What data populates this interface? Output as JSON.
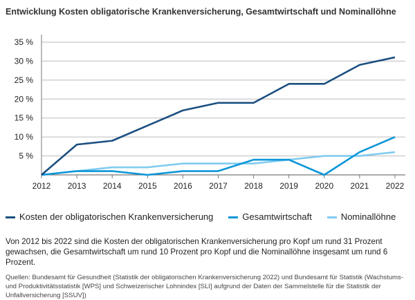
{
  "chart_data": {
    "type": "line",
    "title": "Entwicklung Kosten obligatorische Krankenversicherung, Gesamtwirtschaft und Nominallöhne",
    "x": [
      2012,
      2013,
      2014,
      2015,
      2016,
      2017,
      2018,
      2019,
      2020,
      2021,
      2022
    ],
    "yticks": [
      5,
      10,
      15,
      20,
      25,
      30,
      35
    ],
    "ytick_labels": [
      "5 %",
      "10 %",
      "15 %",
      "20 %",
      "25 %",
      "30 %",
      "35 %"
    ],
    "ylim": [
      0,
      35
    ],
    "grid": "horizontal",
    "legend": "bottom",
    "series": [
      {
        "name": "Kosten der obligatorischen Krankenversicherung",
        "color": "#1b4f80",
        "values": [
          0,
          8,
          9,
          13,
          17,
          19,
          19,
          24,
          24,
          29,
          31
        ]
      },
      {
        "name": "Gesamtwirtschaft",
        "color": "#0a95d8",
        "values": [
          0,
          1,
          1,
          0,
          1,
          1,
          4,
          4,
          0,
          6,
          10
        ]
      },
      {
        "name": "Nominallöhne",
        "color": "#80cbf0",
        "values": [
          0,
          1,
          2,
          2,
          3,
          3,
          3,
          4,
          5,
          5,
          6
        ]
      }
    ]
  },
  "note": "Von 2012 bis 2022 sind die Kosten der obligatorischen Krankenversicherung pro Kopf um rund 31 Prozent gewachsen, die Gesamtwirtschaft um rund 10 Prozent pro Kopf und die Nominallöhne insgesamt um rund 6 Prozent.",
  "source": "Quellen: Bundesamt für Gesundheit (Statistik der obligatorischen Krankenversicherung 2022) und Bundesamt für Statistik (Wachstums- und Produktivitätsstatistik [WPS] und Schweizerischer Lohnindex [SLI] aufgrund der Daten der Sammelstelle für die Statistik der Unfallversicherung [SSUV])"
}
